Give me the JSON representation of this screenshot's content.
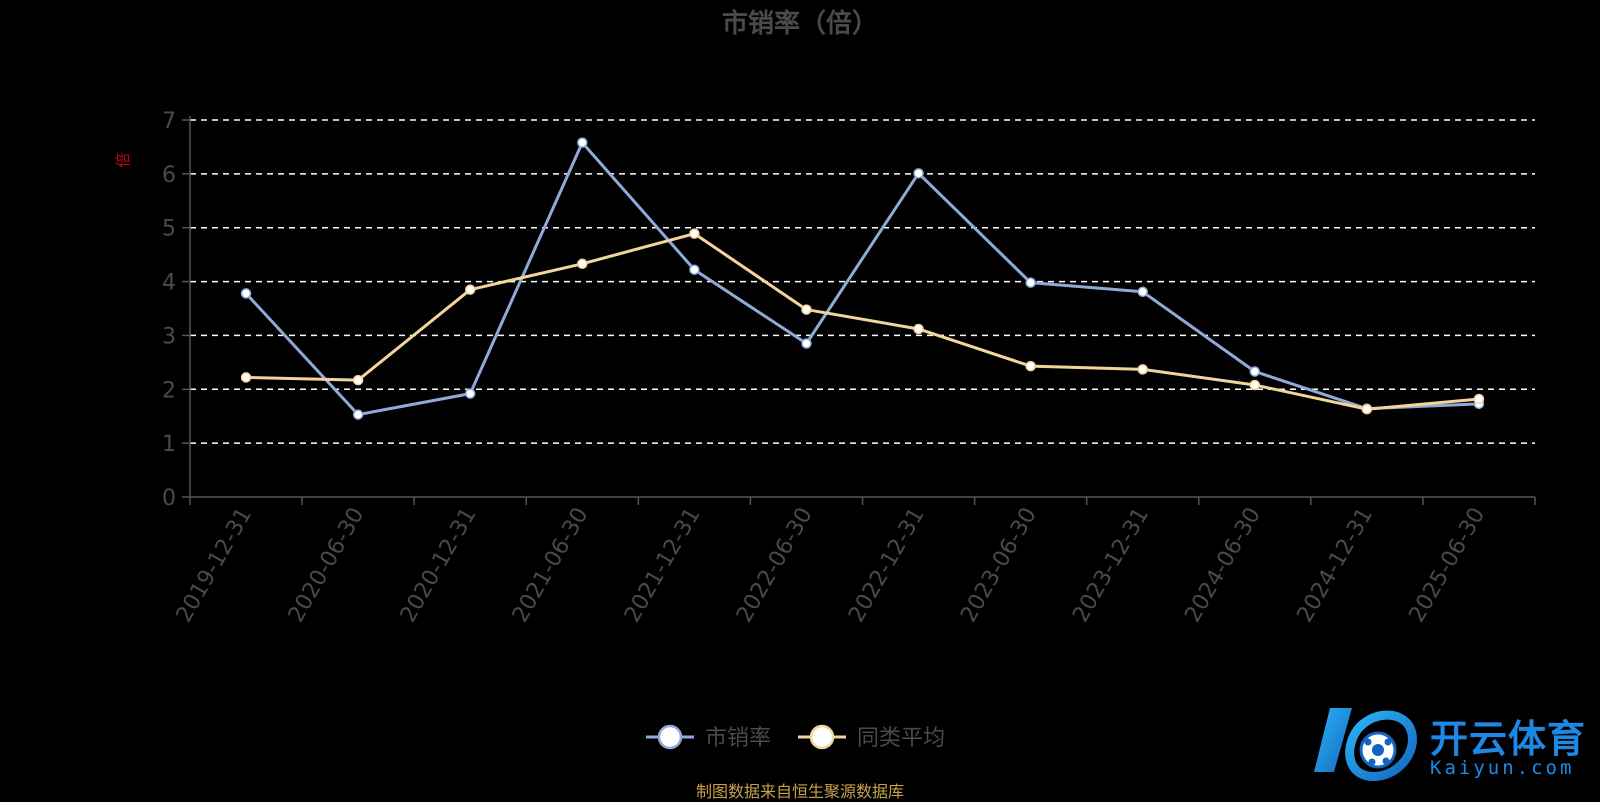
{
  "chart_data": {
    "type": "line",
    "title": "市销率（倍）",
    "ylabel": "倍",
    "xlabel": "",
    "ylim": [
      0,
      7
    ],
    "yticks": [
      0,
      1,
      2,
      3,
      4,
      5,
      6,
      7
    ],
    "grid": true,
    "legend_position": "bottom-center",
    "categories": [
      "2019-12-31",
      "2020-06-30",
      "2020-12-31",
      "2021-06-30",
      "2021-12-31",
      "2022-06-30",
      "2022-12-31",
      "2023-06-30",
      "2023-12-31",
      "2024-06-30",
      "2024-12-31",
      "2025-06-30"
    ],
    "series": [
      {
        "name": "市销率",
        "color": "#8fa9d9",
        "values": [
          3.78,
          1.53,
          1.92,
          6.58,
          4.22,
          2.85,
          6.01,
          3.98,
          3.81,
          2.33,
          1.64,
          1.73
        ]
      },
      {
        "name": "同类平均",
        "color": "#f3d49a",
        "values": [
          2.22,
          2.17,
          3.85,
          4.33,
          4.89,
          3.48,
          3.12,
          2.43,
          2.37,
          2.08,
          1.63,
          1.82
        ]
      }
    ]
  },
  "source_note": "制图数据来自恒生聚源数据库",
  "watermark": {
    "cn": "开云体育",
    "en": "Kaiyun.com"
  },
  "colors": {
    "background": "#000000",
    "axis": "#555555",
    "tick_label": "#4a4a4a",
    "grid": "#ffffff",
    "ylabel": "#cc0000",
    "title": "#4a4a4a",
    "source_note": "#c8a24a",
    "watermark": "#1e88e5"
  }
}
